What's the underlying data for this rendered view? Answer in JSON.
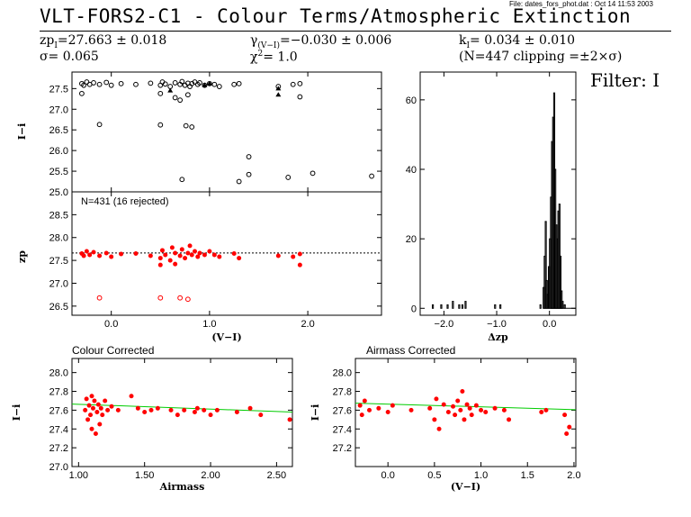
{
  "header": {
    "file_note": "File: dates_fors_phot.dat : Oct 14 11:53 2003",
    "title": "VLT-FORS2-C1 - Colour Terms/Atmospheric Extinction",
    "zp": "27.663 ± 0.018",
    "sigma": "0.065",
    "gamma": "−0.030 ± 0.006",
    "chi2": "1.0",
    "k": "0.034 ± 0.010",
    "n_info": "(N=447 clipping =±2×σ)",
    "filter": "Filter: I"
  },
  "chart_data": [
    {
      "id": "I-i-vs-V-I",
      "type": "scatter",
      "ylabel": "I−i",
      "xlim": [
        -0.4,
        2.75
      ],
      "ylim": [
        25.0,
        27.9
      ],
      "yticks": [
        "25.0",
        "25.5",
        "26.0",
        "26.5",
        "27.0",
        "27.5"
      ],
      "points_main": [
        [
          -0.3,
          27.62
        ],
        [
          -0.28,
          27.58
        ],
        [
          -0.25,
          27.66
        ],
        [
          -0.22,
          27.6
        ],
        [
          -0.18,
          27.64
        ],
        [
          -0.12,
          27.6
        ],
        [
          -0.05,
          27.65
        ],
        [
          0.0,
          27.58
        ],
        [
          0.1,
          27.62
        ],
        [
          0.25,
          27.6
        ],
        [
          0.4,
          27.63
        ],
        [
          0.5,
          27.58
        ],
        [
          0.52,
          27.66
        ],
        [
          0.55,
          27.61
        ],
        [
          0.6,
          27.55
        ],
        [
          0.65,
          27.64
        ],
        [
          0.7,
          27.6
        ],
        [
          0.72,
          27.67
        ],
        [
          0.75,
          27.58
        ],
        [
          0.78,
          27.63
        ],
        [
          0.8,
          27.55
        ],
        [
          0.82,
          27.62
        ],
        [
          0.85,
          27.66
        ],
        [
          0.88,
          27.6
        ],
        [
          0.9,
          27.64
        ],
        [
          0.95,
          27.58
        ],
        [
          1.0,
          27.62
        ],
        [
          1.05,
          27.6
        ],
        [
          1.1,
          27.55
        ],
        [
          1.25,
          27.6
        ],
        [
          1.3,
          27.62
        ],
        [
          1.7,
          27.55
        ],
        [
          1.85,
          27.6
        ],
        [
          1.92,
          27.62
        ],
        [
          -0.3,
          27.38
        ],
        [
          0.5,
          27.38
        ],
        [
          0.65,
          27.28
        ],
        [
          0.7,
          27.22
        ],
        [
          0.78,
          27.35
        ],
        [
          1.92,
          27.3
        ]
      ],
      "triangles": [
        [
          0.6,
          27.45
        ],
        [
          0.95,
          27.58
        ],
        [
          1.0,
          27.62
        ],
        [
          1.7,
          27.5
        ],
        [
          1.7,
          27.35
        ]
      ],
      "points_outliers": [
        [
          -0.12,
          26.63
        ],
        [
          0.5,
          26.62
        ],
        [
          0.76,
          26.6
        ],
        [
          0.82,
          26.57
        ],
        [
          1.4,
          25.85
        ],
        [
          1.4,
          25.42
        ],
        [
          0.72,
          25.3
        ],
        [
          1.3,
          25.25
        ],
        [
          1.8,
          25.35
        ],
        [
          2.05,
          25.45
        ],
        [
          2.65,
          25.38
        ]
      ]
    },
    {
      "id": "zp-vs-V-I",
      "type": "scatter",
      "annotation": "N=431 (16 rejected)",
      "ylabel": "zp",
      "xlabel": "(V−I)",
      "xlim": [
        -0.4,
        2.75
      ],
      "ylim": [
        26.3,
        29.0
      ],
      "yticks": [
        "26.5",
        "27.0",
        "27.5",
        "28.0",
        "28.5"
      ],
      "xticks": [
        "0.0",
        "1.0",
        "2.0"
      ],
      "zp_line": 27.663,
      "points_red": [
        [
          -0.3,
          27.65
        ],
        [
          -0.28,
          27.6
        ],
        [
          -0.25,
          27.7
        ],
        [
          -0.22,
          27.62
        ],
        [
          -0.18,
          27.68
        ],
        [
          -0.12,
          27.6
        ],
        [
          -0.05,
          27.66
        ],
        [
          0.0,
          27.58
        ],
        [
          0.1,
          27.64
        ],
        [
          0.25,
          27.65
        ],
        [
          0.4,
          27.6
        ],
        [
          0.5,
          27.55
        ],
        [
          0.52,
          27.72
        ],
        [
          0.55,
          27.62
        ],
        [
          0.6,
          27.5
        ],
        [
          0.62,
          27.78
        ],
        [
          0.65,
          27.66
        ],
        [
          0.7,
          27.6
        ],
        [
          0.72,
          27.74
        ],
        [
          0.75,
          27.55
        ],
        [
          0.78,
          27.66
        ],
        [
          0.8,
          27.82
        ],
        [
          0.82,
          27.62
        ],
        [
          0.85,
          27.7
        ],
        [
          0.88,
          27.58
        ],
        [
          0.9,
          27.66
        ],
        [
          0.95,
          27.62
        ],
        [
          1.0,
          27.7
        ],
        [
          1.05,
          27.62
        ],
        [
          1.1,
          27.58
        ],
        [
          1.25,
          27.65
        ],
        [
          1.3,
          27.55
        ],
        [
          1.7,
          27.6
        ],
        [
          1.85,
          27.58
        ],
        [
          1.92,
          27.64
        ],
        [
          1.92,
          27.4
        ],
        [
          0.5,
          27.4
        ],
        [
          0.65,
          27.42
        ]
      ],
      "points_rejected": [
        [
          -0.12,
          26.68
        ],
        [
          0.5,
          26.68
        ],
        [
          0.7,
          26.68
        ],
        [
          0.78,
          26.65
        ]
      ]
    },
    {
      "id": "dzp-histogram",
      "type": "bar",
      "xlabel": "Δzp",
      "xlim": [
        -2.45,
        0.5
      ],
      "ylim": [
        -2,
        68
      ],
      "yticks": [
        "0",
        "20",
        "40",
        "60"
      ],
      "xticks": [
        "−2.0",
        "−1.0",
        "0.0"
      ],
      "bin_width": 0.02,
      "bins": [
        [
          -2.22,
          1
        ],
        [
          -2.06,
          1
        ],
        [
          -1.94,
          1
        ],
        [
          -1.84,
          2
        ],
        [
          -1.72,
          1
        ],
        [
          -1.66,
          1
        ],
        [
          -1.6,
          2
        ],
        [
          -1.04,
          1
        ],
        [
          -0.94,
          1
        ],
        [
          -0.18,
          1
        ],
        [
          -0.12,
          6
        ],
        [
          -0.1,
          15
        ],
        [
          -0.08,
          25
        ],
        [
          -0.06,
          8
        ],
        [
          -0.04,
          4
        ],
        [
          -0.02,
          12
        ],
        [
          0.0,
          20
        ],
        [
          0.02,
          32
        ],
        [
          0.04,
          48
        ],
        [
          0.06,
          55
        ],
        [
          0.08,
          62
        ],
        [
          0.1,
          40
        ],
        [
          0.12,
          24
        ],
        [
          0.14,
          20
        ],
        [
          0.16,
          28
        ],
        [
          0.18,
          30
        ],
        [
          0.2,
          15
        ],
        [
          0.22,
          5
        ],
        [
          0.24,
          2
        ],
        [
          0.28,
          1
        ]
      ]
    },
    {
      "id": "colour-corrected",
      "type": "scatter",
      "title": "Colour Corrected",
      "xlabel": "Airmass",
      "ylabel": "I−i",
      "xlim": [
        0.95,
        2.62
      ],
      "ylim": [
        27.0,
        28.15
      ],
      "yticks": [
        "27.0",
        "27.2",
        "27.4",
        "27.6",
        "27.8",
        "28.0"
      ],
      "xticks": [
        "1.00",
        "1.50",
        "2.00",
        "2.50"
      ],
      "fit_line": [
        [
          0.95,
          27.665
        ],
        [
          2.62,
          27.58
        ]
      ],
      "points_red": [
        [
          1.05,
          27.6
        ],
        [
          1.06,
          27.72
        ],
        [
          1.07,
          27.5
        ],
        [
          1.08,
          27.65
        ],
        [
          1.09,
          27.55
        ],
        [
          1.1,
          27.75
        ],
        [
          1.1,
          27.4
        ],
        [
          1.11,
          27.62
        ],
        [
          1.12,
          27.7
        ],
        [
          1.13,
          27.35
        ],
        [
          1.14,
          27.58
        ],
        [
          1.15,
          27.66
        ],
        [
          1.16,
          27.45
        ],
        [
          1.17,
          27.62
        ],
        [
          1.18,
          27.55
        ],
        [
          1.2,
          27.7
        ],
        [
          1.22,
          27.6
        ],
        [
          1.25,
          27.64
        ],
        [
          1.3,
          27.6
        ],
        [
          1.4,
          27.75
        ],
        [
          1.45,
          27.62
        ],
        [
          1.5,
          27.58
        ],
        [
          1.55,
          27.6
        ],
        [
          1.6,
          27.62
        ],
        [
          1.7,
          27.6
        ],
        [
          1.75,
          27.55
        ],
        [
          1.8,
          27.6
        ],
        [
          1.88,
          27.58
        ],
        [
          1.9,
          27.62
        ],
        [
          1.95,
          27.6
        ],
        [
          2.0,
          27.55
        ],
        [
          2.05,
          27.6
        ],
        [
          2.2,
          27.58
        ],
        [
          2.3,
          27.62
        ],
        [
          2.38,
          27.55
        ],
        [
          2.6,
          27.5
        ]
      ]
    },
    {
      "id": "airmass-corrected",
      "type": "scatter",
      "title": "Airmass Corrected",
      "xlabel": "(V−I)",
      "ylabel": "I−i",
      "xlim": [
        -0.35,
        2.02
      ],
      "ylim": [
        27.0,
        28.15
      ],
      "yticks": [
        "27.2",
        "27.4",
        "27.6",
        "27.8",
        "28.0"
      ],
      "xticks": [
        "0.0",
        "0.5",
        "1.0",
        "1.5",
        "2.0"
      ],
      "fit_line": [
        [
          -0.35,
          27.675
        ],
        [
          2.02,
          27.605
        ]
      ],
      "points_red": [
        [
          -0.3,
          27.65
        ],
        [
          -0.28,
          27.55
        ],
        [
          -0.25,
          27.7
        ],
        [
          -0.2,
          27.6
        ],
        [
          -0.1,
          27.62
        ],
        [
          0.0,
          27.58
        ],
        [
          0.05,
          27.65
        ],
        [
          0.25,
          27.6
        ],
        [
          0.45,
          27.62
        ],
        [
          0.5,
          27.5
        ],
        [
          0.52,
          27.72
        ],
        [
          0.55,
          27.4
        ],
        [
          0.6,
          27.66
        ],
        [
          0.65,
          27.58
        ],
        [
          0.7,
          27.64
        ],
        [
          0.72,
          27.55
        ],
        [
          0.75,
          27.7
        ],
        [
          0.78,
          27.6
        ],
        [
          0.8,
          27.8
        ],
        [
          0.82,
          27.5
        ],
        [
          0.85,
          27.66
        ],
        [
          0.88,
          27.62
        ],
        [
          0.9,
          27.55
        ],
        [
          0.95,
          27.65
        ],
        [
          1.0,
          27.6
        ],
        [
          1.05,
          27.58
        ],
        [
          1.15,
          27.62
        ],
        [
          1.25,
          27.6
        ],
        [
          1.3,
          27.5
        ],
        [
          1.65,
          27.58
        ],
        [
          1.7,
          27.6
        ],
        [
          1.9,
          27.55
        ],
        [
          1.92,
          27.35
        ],
        [
          1.95,
          27.42
        ]
      ]
    }
  ]
}
